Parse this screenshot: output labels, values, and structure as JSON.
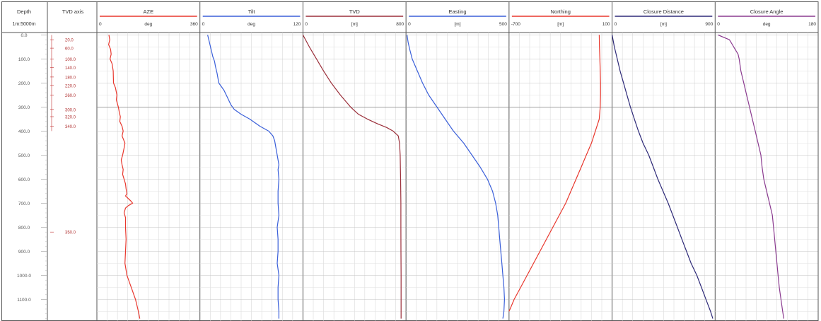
{
  "depth_column": {
    "title": "Depth",
    "scale": "1m:5000m",
    "ticks": [
      {
        "depth": 0,
        "label": "0.0"
      },
      {
        "depth": 100,
        "label": "100.0"
      },
      {
        "depth": 200,
        "label": "200.0"
      },
      {
        "depth": 300,
        "label": "300.0"
      },
      {
        "depth": 400,
        "label": "400.0"
      },
      {
        "depth": 500,
        "label": "500.0"
      },
      {
        "depth": 600,
        "label": "600.0"
      },
      {
        "depth": 700,
        "label": "700.0"
      },
      {
        "depth": 800,
        "label": "800.0"
      },
      {
        "depth": 900,
        "label": "900.0"
      },
      {
        "depth": 1000,
        "label": "1000.0"
      },
      {
        "depth": 1100,
        "label": "1100.0"
      }
    ]
  },
  "tvd_axis_column": {
    "title": "TVD axis",
    "marks": [
      {
        "depth": 20,
        "label": "20.0"
      },
      {
        "depth": 55,
        "label": "60.0"
      },
      {
        "depth": 100,
        "label": "100.0"
      },
      {
        "depth": 135,
        "label": "140.0"
      },
      {
        "depth": 175,
        "label": "180.0"
      },
      {
        "depth": 210,
        "label": "220.0"
      },
      {
        "depth": 250,
        "label": "260.0"
      },
      {
        "depth": 310,
        "label": "300.0"
      },
      {
        "depth": 340,
        "label": "320.0"
      },
      {
        "depth": 380,
        "label": "340.0"
      },
      {
        "depth": 820,
        "label": "350.0"
      }
    ]
  },
  "chart_data": {
    "type": "line",
    "y_axis": {
      "quantity": "Depth",
      "range": [
        -10,
        1190
      ],
      "reversed": true
    },
    "grid": true,
    "tracks": [
      {
        "name": "AZE",
        "unit": "deg",
        "range": [
          0,
          360
        ],
        "range_labels": [
          "0",
          "360"
        ],
        "color": "#e8372d",
        "points": [
          [
            0,
            42
          ],
          [
            20,
            45
          ],
          [
            40,
            41
          ],
          [
            60,
            48
          ],
          [
            80,
            50
          ],
          [
            100,
            46
          ],
          [
            120,
            53
          ],
          [
            150,
            57
          ],
          [
            200,
            58
          ],
          [
            220,
            65
          ],
          [
            250,
            70
          ],
          [
            270,
            68
          ],
          [
            300,
            75
          ],
          [
            320,
            78
          ],
          [
            340,
            82
          ],
          [
            360,
            80
          ],
          [
            380,
            88
          ],
          [
            400,
            92
          ],
          [
            420,
            88
          ],
          [
            450,
            98
          ],
          [
            470,
            95
          ],
          [
            500,
            90
          ],
          [
            520,
            85
          ],
          [
            540,
            88
          ],
          [
            560,
            92
          ],
          [
            580,
            90
          ],
          [
            600,
            95
          ],
          [
            620,
            100
          ],
          [
            640,
            102
          ],
          [
            660,
            105
          ],
          [
            670,
            100
          ],
          [
            690,
            118
          ],
          [
            700,
            125
          ],
          [
            710,
            110
          ],
          [
            720,
            100
          ],
          [
            740,
            95
          ],
          [
            760,
            100
          ],
          [
            800,
            100
          ],
          [
            850,
            102
          ],
          [
            900,
            100
          ],
          [
            950,
            98
          ],
          [
            1000,
            105
          ],
          [
            1050,
            120
          ],
          [
            1100,
            135
          ],
          [
            1150,
            145
          ],
          [
            1180,
            150
          ]
        ]
      },
      {
        "name": "Tilt",
        "unit": "deg",
        "range": [
          0,
          120
        ],
        "range_labels": [
          "0",
          "120"
        ],
        "color": "#3a5fd9",
        "points": [
          [
            0,
            9
          ],
          [
            30,
            11
          ],
          [
            60,
            13
          ],
          [
            90,
            15
          ],
          [
            110,
            17
          ],
          [
            130,
            18
          ],
          [
            160,
            20
          ],
          [
            200,
            22
          ],
          [
            230,
            28
          ],
          [
            260,
            32
          ],
          [
            290,
            36
          ],
          [
            310,
            40
          ],
          [
            330,
            48
          ],
          [
            350,
            58
          ],
          [
            380,
            70
          ],
          [
            400,
            80
          ],
          [
            420,
            85
          ],
          [
            440,
            87
          ],
          [
            480,
            89
          ],
          [
            520,
            91
          ],
          [
            540,
            92
          ],
          [
            560,
            91
          ],
          [
            600,
            92
          ],
          [
            650,
            91
          ],
          [
            700,
            91
          ],
          [
            750,
            92
          ],
          [
            800,
            90
          ],
          [
            850,
            91
          ],
          [
            900,
            91
          ],
          [
            950,
            90
          ],
          [
            1000,
            92
          ],
          [
            1050,
            91
          ],
          [
            1100,
            91
          ],
          [
            1150,
            92
          ],
          [
            1180,
            92
          ]
        ]
      },
      {
        "name": "TVD",
        "unit": "[m]",
        "range": [
          0,
          800
        ],
        "range_labels": [
          "0",
          "800"
        ],
        "color": "#9b2f3a",
        "points": [
          [
            0,
            0
          ],
          [
            50,
            50
          ],
          [
            100,
            105
          ],
          [
            150,
            160
          ],
          [
            200,
            220
          ],
          [
            250,
            290
          ],
          [
            300,
            370
          ],
          [
            330,
            430
          ],
          [
            350,
            500
          ],
          [
            370,
            580
          ],
          [
            385,
            650
          ],
          [
            400,
            700
          ],
          [
            420,
            740
          ],
          [
            450,
            750
          ],
          [
            500,
            755
          ],
          [
            600,
            758
          ],
          [
            700,
            760
          ],
          [
            800,
            760
          ],
          [
            900,
            761
          ],
          [
            1000,
            762
          ],
          [
            1100,
            762
          ],
          [
            1180,
            762
          ]
        ]
      },
      {
        "name": "Easting",
        "unit": "[m]",
        "range": [
          0,
          500
        ],
        "range_labels": [
          "0",
          "500"
        ],
        "color": "#3a5fd9",
        "points": [
          [
            0,
            5
          ],
          [
            30,
            10
          ],
          [
            60,
            18
          ],
          [
            100,
            30
          ],
          [
            150,
            55
          ],
          [
            200,
            80
          ],
          [
            250,
            110
          ],
          [
            300,
            150
          ],
          [
            350,
            190
          ],
          [
            400,
            230
          ],
          [
            450,
            280
          ],
          [
            500,
            320
          ],
          [
            550,
            360
          ],
          [
            600,
            395
          ],
          [
            650,
            420
          ],
          [
            700,
            435
          ],
          [
            750,
            445
          ],
          [
            800,
            450
          ],
          [
            850,
            455
          ],
          [
            900,
            460
          ],
          [
            950,
            465
          ],
          [
            1000,
            470
          ],
          [
            1050,
            475
          ],
          [
            1100,
            478
          ],
          [
            1150,
            475
          ],
          [
            1180,
            470
          ]
        ]
      },
      {
        "name": "Northing",
        "unit": "[m]",
        "range": [
          -700,
          100
        ],
        "range_labels": [
          "-700",
          "100"
        ],
        "color": "#e8372d",
        "points": [
          [
            0,
            0
          ],
          [
            50,
            2
          ],
          [
            100,
            5
          ],
          [
            150,
            8
          ],
          [
            200,
            10
          ],
          [
            250,
            10
          ],
          [
            300,
            8
          ],
          [
            350,
            0
          ],
          [
            400,
            -30
          ],
          [
            450,
            -60
          ],
          [
            500,
            -100
          ],
          [
            550,
            -140
          ],
          [
            600,
            -180
          ],
          [
            650,
            -220
          ],
          [
            700,
            -260
          ],
          [
            750,
            -310
          ],
          [
            800,
            -360
          ],
          [
            850,
            -410
          ],
          [
            900,
            -460
          ],
          [
            950,
            -510
          ],
          [
            1000,
            -560
          ],
          [
            1050,
            -610
          ],
          [
            1100,
            -660
          ],
          [
            1150,
            -700
          ]
        ]
      },
      {
        "name": "Closure Distance",
        "unit": "[m]",
        "range": [
          0,
          900
        ],
        "range_labels": [
          "0",
          "900"
        ],
        "color": "#2e2a78",
        "points": [
          [
            0,
            0
          ],
          [
            50,
            20
          ],
          [
            100,
            45
          ],
          [
            150,
            70
          ],
          [
            200,
            100
          ],
          [
            250,
            130
          ],
          [
            300,
            160
          ],
          [
            350,
            195
          ],
          [
            400,
            230
          ],
          [
            450,
            270
          ],
          [
            500,
            320
          ],
          [
            550,
            360
          ],
          [
            600,
            400
          ],
          [
            650,
            445
          ],
          [
            700,
            490
          ],
          [
            750,
            530
          ],
          [
            800,
            570
          ],
          [
            850,
            610
          ],
          [
            900,
            650
          ],
          [
            950,
            690
          ],
          [
            1000,
            740
          ],
          [
            1050,
            780
          ],
          [
            1100,
            820
          ],
          [
            1150,
            860
          ],
          [
            1180,
            880
          ]
        ]
      },
      {
        "name": "Closure Angle",
        "unit": "deg",
        "range": [
          0,
          180
        ],
        "range_labels": [
          "0",
          "180"
        ],
        "color": "#8a3a8f",
        "points": [
          [
            0,
            5
          ],
          [
            20,
            25
          ],
          [
            40,
            30
          ],
          [
            60,
            35
          ],
          [
            80,
            40
          ],
          [
            100,
            42
          ],
          [
            150,
            45
          ],
          [
            200,
            50
          ],
          [
            250,
            55
          ],
          [
            300,
            60
          ],
          [
            350,
            65
          ],
          [
            400,
            70
          ],
          [
            450,
            75
          ],
          [
            500,
            80
          ],
          [
            550,
            82
          ],
          [
            600,
            85
          ],
          [
            650,
            90
          ],
          [
            700,
            95
          ],
          [
            750,
            100
          ],
          [
            800,
            102
          ],
          [
            850,
            104
          ],
          [
            900,
            106
          ],
          [
            950,
            108
          ],
          [
            1000,
            110
          ],
          [
            1050,
            112
          ],
          [
            1100,
            115
          ],
          [
            1150,
            118
          ],
          [
            1180,
            120
          ]
        ]
      }
    ]
  }
}
